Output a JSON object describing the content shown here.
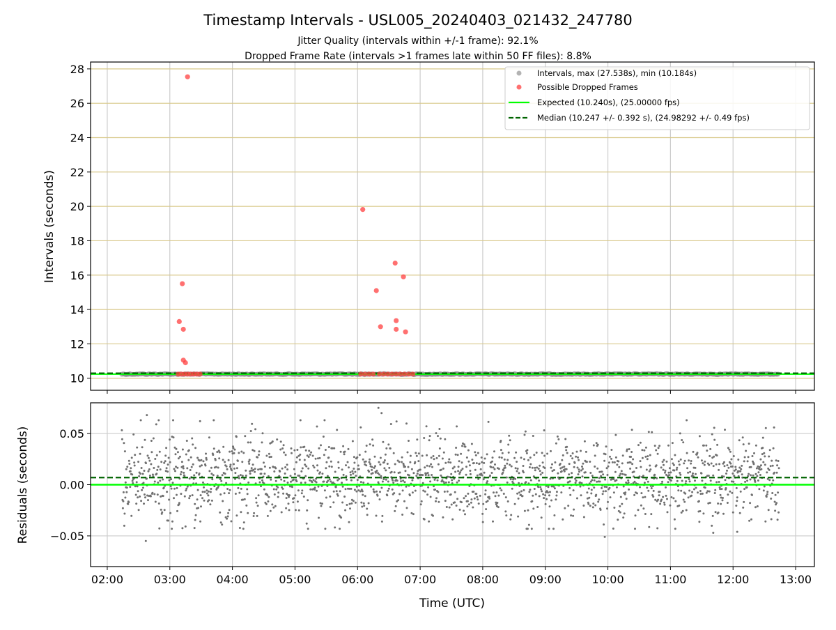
{
  "chart_data": [
    {
      "type": "scatter",
      "title": "Timestamp Intervals - USL005_20240403_021432_247780",
      "subtitle_lines": [
        "Jitter Quality (intervals within +/-1 frame): 92.1%",
        "Dropped Frame Rate (intervals >1 frames late within 50 FF files): 8.8%"
      ],
      "ylabel": "Intervals (seconds)",
      "xlim": [
        "01:44",
        "13:18"
      ],
      "ylim": [
        9.3,
        28.4
      ],
      "yticks": [
        10,
        12,
        14,
        16,
        18,
        20,
        22,
        24,
        26,
        28
      ],
      "grid": true,
      "legend_position": "top-right",
      "legend": [
        "Intervals, max (27.538s), min (10.184s)",
        "Possible Dropped Frames",
        "Expected (10.240s), (25.00000 fps)",
        "Median (10.247 +/- 0.392 s), (24.98292 +/- 0.49 fps)"
      ],
      "series": [
        {
          "name": "Intervals, max (27.538s), min (10.184s)",
          "kind": "band",
          "x_range": [
            "02:14",
            "12:44"
          ],
          "y": 10.24
        },
        {
          "name": "Possible Dropped Frames",
          "kind": "points",
          "points": [
            [
              "03:09",
              13.3
            ],
            [
              "03:12",
              15.5
            ],
            [
              "03:13",
              12.85
            ],
            [
              "03:13",
              11.05
            ],
            [
              "03:15",
              10.9
            ],
            [
              "03:17",
              27.54
            ],
            [
              "03:08",
              10.24
            ],
            [
              "03:11",
              10.24
            ],
            [
              "03:14",
              10.24
            ],
            [
              "03:17",
              10.24
            ],
            [
              "03:20",
              10.24
            ],
            [
              "03:23",
              10.24
            ],
            [
              "03:26",
              10.24
            ],
            [
              "03:29",
              10.24
            ],
            [
              "06:05",
              19.82
            ],
            [
              "06:18",
              15.1
            ],
            [
              "06:22",
              13.0
            ],
            [
              "06:36",
              16.7
            ],
            [
              "06:37",
              13.35
            ],
            [
              "06:37",
              12.85
            ],
            [
              "06:44",
              15.9
            ],
            [
              "06:46",
              12.7
            ],
            [
              "06:03",
              10.24
            ],
            [
              "06:07",
              10.24
            ],
            [
              "06:11",
              10.24
            ],
            [
              "06:15",
              10.24
            ],
            [
              "06:21",
              10.24
            ],
            [
              "06:25",
              10.24
            ],
            [
              "06:29",
              10.24
            ],
            [
              "06:33",
              10.24
            ],
            [
              "06:37",
              10.24
            ],
            [
              "06:41",
              10.24
            ],
            [
              "06:45",
              10.24
            ],
            [
              "06:49",
              10.24
            ],
            [
              "06:53",
              10.24
            ]
          ]
        },
        {
          "name": "Expected (10.240s), (25.00000 fps)",
          "kind": "hline",
          "y": 10.24,
          "color": "#00ff00"
        },
        {
          "name": "Median (10.247 +/- 0.392 s), (24.98292 +/- 0.49 fps)",
          "kind": "hline",
          "y": 10.247,
          "color": "#006400"
        }
      ]
    },
    {
      "type": "scatter",
      "xlabel": "Time (UTC)",
      "ylabel": "Residuals (seconds)",
      "xlim": [
        "01:44",
        "13:18"
      ],
      "ylim": [
        -0.08,
        0.08
      ],
      "yticks": [
        -0.05,
        0.0,
        0.05
      ],
      "ytick_labels": [
        "−0.05",
        "0.00",
        "0.05"
      ],
      "xticks": [
        "02:00",
        "03:00",
        "04:00",
        "05:00",
        "06:00",
        "07:00",
        "08:00",
        "09:00",
        "10:00",
        "11:00",
        "12:00",
        "13:00"
      ],
      "grid": true,
      "residual_x_range": [
        "02:14",
        "12:44"
      ],
      "residual_spread": 0.02,
      "expected_line": 0.0,
      "median_line": 0.007,
      "outliers": [
        [
          "06:20",
          0.075
        ],
        [
          "06:23",
          0.07
        ],
        [
          "03:29",
          0.062
        ],
        [
          "02:38",
          0.068
        ],
        [
          "02:37",
          -0.055
        ],
        [
          "09:57",
          -0.051
        ],
        [
          "11:41",
          -0.047
        ],
        [
          "12:04",
          -0.046
        ]
      ]
    }
  ],
  "colors": {
    "interval_points": "#808080",
    "dropped_points": "#ff4040",
    "expected": "#00ff00",
    "median": "#006400",
    "hgrid_top": "#d8c88a",
    "vgrid": "#cccccc"
  }
}
